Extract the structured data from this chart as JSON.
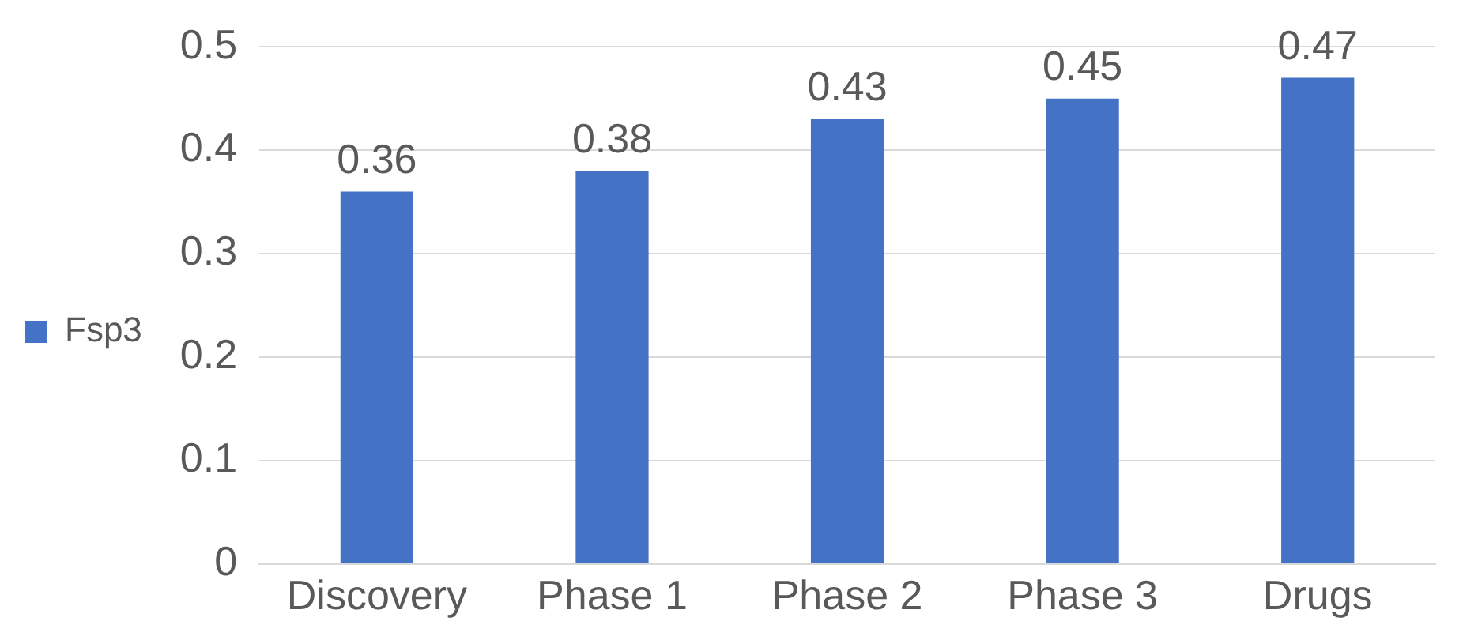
{
  "chart_data": {
    "type": "bar",
    "categories": [
      "Discovery",
      "Phase 1",
      "Phase 2",
      "Phase 3",
      "Drugs"
    ],
    "series": [
      {
        "name": "Fsp3",
        "color": "#4472c4",
        "values": [
          0.36,
          0.38,
          0.43,
          0.45,
          0.47
        ]
      }
    ],
    "ylim": [
      0,
      0.5
    ],
    "yticks": [
      0,
      0.1,
      0.2,
      0.3,
      0.4,
      0.5
    ],
    "grid": "y",
    "legend": "left",
    "data_labels": true
  }
}
